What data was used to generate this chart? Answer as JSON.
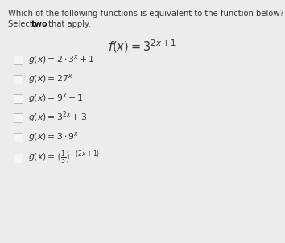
{
  "title": "Which of the following functions is equivalent to the function below?",
  "subtitle": "Select  two  that apply.",
  "main_function": "$f(x) = 3^{2x+1}$",
  "options": [
    "$g(x) = 2 \\cdot 3^{x} + 1$",
    "$g(x) = 27^{x}$",
    "$g(x) = 9^{x} + 1$",
    "$g(x) = 3^{2x} + 3$",
    "$g(x) = 3 \\cdot 9^{x}$",
    "$g(x) = \\left(\\frac{1}{3}\\right)^{-(2x+1)}$"
  ],
  "bg_color": "#eeeceb",
  "text_color": "#333333",
  "bold_color": "#111111",
  "title_fontsize": 7.2,
  "subtitle_fontsize": 7.2,
  "main_func_fontsize": 10.5,
  "option_fontsize": 7.8,
  "checkbox_color": "#bbbbbb",
  "checkbox_face": "#f5f5f5"
}
